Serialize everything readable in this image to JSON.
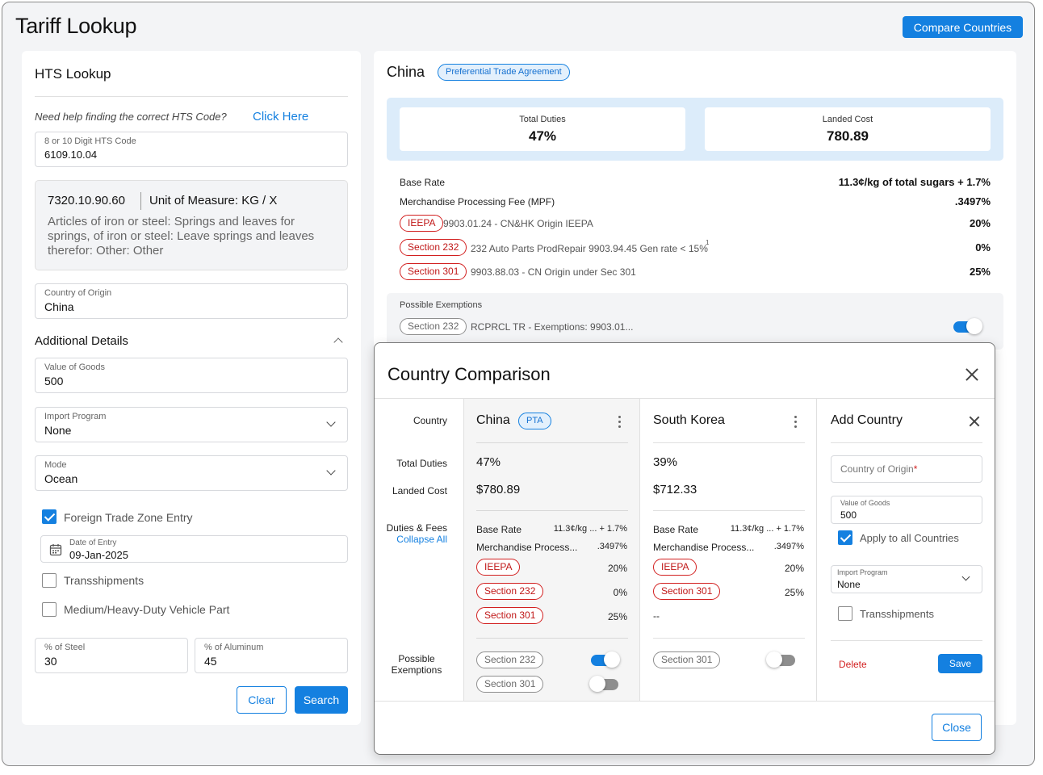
{
  "page": {
    "title": "Tariff Lookup",
    "compare_button": "Compare Countries"
  },
  "hts": {
    "title": "HTS Lookup",
    "help_text": "Need help finding the correct HTS Code?",
    "help_link": "Click Here",
    "code_label": "8 or 10 Digit HTS Code",
    "code_value": "6109.10.04",
    "result_code": "7320.10.90.60",
    "result_unit": "Unit of Measure: KG / X",
    "result_desc": "Articles of iron or steel: Springs and leaves for springs, of iron or steel: Leave springs and leaves therefor: Other: Other",
    "origin_label": "Country of Origin",
    "origin_value": "China",
    "additional_title": "Additional Details",
    "value_label": "Value of Goods",
    "value_value": "500",
    "program_label": "Import Program",
    "program_value": "None",
    "mode_label": "Mode",
    "mode_value": "Ocean",
    "ftz_label": "Foreign Trade Zone Entry",
    "date_label": "Date of Entry",
    "date_value": "09-Jan-2025",
    "trans_label": "Transshipments",
    "mhd_label": "Medium/Heavy-Duty Vehicle Part",
    "steel_label": "% of Steel",
    "steel_value": "30",
    "alu_label": "% of Aluminum",
    "alu_value": "45",
    "clear": "Clear",
    "search": "Search"
  },
  "result": {
    "country": "China",
    "badge": "Preferential Trade Agreement",
    "total_duties_label": "Total Duties",
    "total_duties": "47%",
    "landed_label": "Landed Cost",
    "landed": "780.89",
    "base_rate_label": "Base Rate",
    "base_rate": "11.3¢/kg of total sugars + 1.7%",
    "mpf_label": "Merchandise Processing Fee  (MPF)",
    "mpf": ".3497%",
    "lines": [
      {
        "tag": "IEEPA",
        "desc": "9903.01.24 - CN&HK Origin IEEPA",
        "sup": "",
        "val": "20%"
      },
      {
        "tag": "Section 232",
        "desc": "232 Auto Parts ProdRepair 9903.94.45 Gen rate < 15%",
        "sup": "1",
        "val": "0%"
      },
      {
        "tag": "Section 301",
        "desc": "9903.88.03 - CN Origin under Sec 301",
        "sup": "",
        "val": "25%"
      }
    ],
    "exemptions_label": "Possible Exemptions",
    "exemption_tag": "Section 232",
    "exemption_desc": "RCPRCL TR - Exemptions: 9903.01..."
  },
  "modal": {
    "title": "Country Comparison",
    "row_country": "Country",
    "row_total": "Total Duties",
    "row_landed": "Landed Cost",
    "row_duties": "Duties & Fees",
    "collapse": "Collapse All",
    "row_exemptions_1": "Possible",
    "row_exemptions_2": "Exemptions",
    "china": {
      "name": "China",
      "badge": "PTA",
      "total": "47%",
      "landed": "$780.89",
      "base_label": "Base Rate",
      "base": "11.3¢/kg ... + 1.7%",
      "mpf_label": "Merchandise Process...",
      "mpf": ".3497%",
      "ieepa": "IEEPA",
      "ieepa_val": "20%",
      "s232": "Section 232",
      "s232_val": "0%",
      "s301": "Section 301",
      "s301_val": "25%",
      "ex1": "Section 232",
      "ex2": "Section 301"
    },
    "korea": {
      "name": "South Korea",
      "total": "39%",
      "landed": "$712.33",
      "base_label": "Base Rate",
      "base": "11.3¢/kg ... + 1.7%",
      "mpf_label": "Merchandise Process...",
      "mpf": ".3497%",
      "ieepa": "IEEPA",
      "ieepa_val": "20%",
      "s301": "Section 301",
      "s301_val": "25%",
      "dash": "--",
      "ex1": "Section 301"
    },
    "add": {
      "title": "Add Country",
      "origin_placeholder": "Country of Origin",
      "required": "*",
      "value_label": "Value of Goods",
      "value": "500",
      "apply_all": "Apply to all Countries",
      "program_label": "Import Program",
      "program": "None",
      "trans": "Transshipments",
      "delete": "Delete",
      "save": "Save"
    },
    "close": "Close"
  }
}
